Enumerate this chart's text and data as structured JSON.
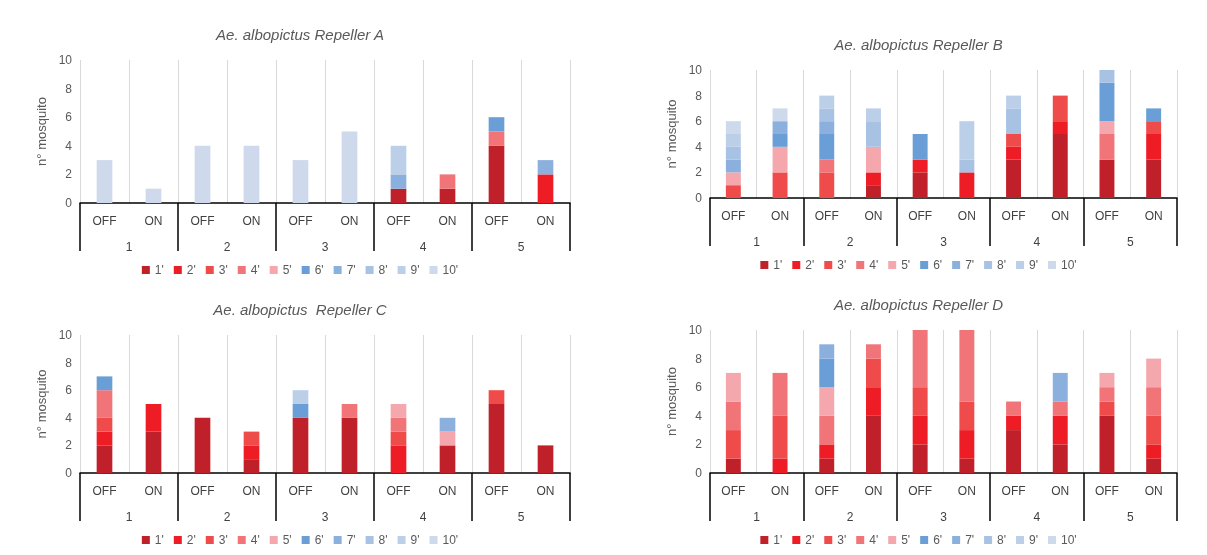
{
  "chart_data": [
    {
      "type": "bar",
      "stacked": true,
      "title": "Ae. albopictus Repeller A",
      "ylabel": "n° mosquito",
      "categories": [
        "OFF",
        "ON",
        "OFF",
        "ON",
        "OFF",
        "ON",
        "OFF",
        "ON",
        "OFF",
        "ON"
      ],
      "annotations": [
        "1",
        "2",
        "3",
        "4",
        "5"
      ],
      "ylim": [
        0,
        10
      ],
      "yticks": [
        0,
        2,
        4,
        6,
        8,
        10
      ],
      "grid": "x",
      "legend": "bottom",
      "series": [
        {
          "name": "1'",
          "color": "#c0202a",
          "values": [
            null,
            null,
            null,
            null,
            null,
            null,
            1,
            1,
            4,
            null
          ]
        },
        {
          "name": "2'",
          "color": "#ee1c25",
          "values": [
            null,
            null,
            null,
            null,
            null,
            null,
            null,
            null,
            null,
            2
          ]
        },
        {
          "name": "3'",
          "color": "#ef4b4b",
          "values": [
            null,
            null,
            null,
            null,
            null,
            null,
            null,
            null,
            null,
            null
          ]
        },
        {
          "name": "4'",
          "color": "#f07478",
          "values": [
            null,
            null,
            null,
            null,
            null,
            null,
            null,
            1,
            1,
            null
          ]
        },
        {
          "name": "5'",
          "color": "#f4a8ad",
          "values": [
            null,
            null,
            null,
            null,
            null,
            null,
            null,
            null,
            null,
            null
          ]
        },
        {
          "name": "6'",
          "color": "#6a9ed6",
          "values": [
            null,
            null,
            null,
            null,
            null,
            null,
            null,
            null,
            1,
            null
          ]
        },
        {
          "name": "7'",
          "color": "#8bb0de",
          "values": [
            null,
            null,
            null,
            null,
            null,
            null,
            1,
            null,
            null,
            1
          ]
        },
        {
          "name": "8'",
          "color": "#a8c2e4",
          "values": [
            null,
            null,
            null,
            null,
            null,
            null,
            null,
            null,
            null,
            null
          ]
        },
        {
          "name": "9'",
          "color": "#bccfe9",
          "values": [
            null,
            null,
            null,
            null,
            null,
            null,
            2,
            null,
            null,
            null
          ]
        },
        {
          "name": "10'",
          "color": "#ced9eb",
          "values": [
            3,
            1,
            4,
            4,
            3,
            5,
            null,
            null,
            null,
            null
          ]
        }
      ]
    },
    {
      "type": "bar",
      "stacked": true,
      "title": "Ae. albopictus Repeller B",
      "ylabel": "n° mosquito",
      "categories": [
        "OFF",
        "ON",
        "OFF",
        "ON",
        "OFF",
        "ON",
        "OFF",
        "ON",
        "OFF",
        "ON"
      ],
      "annotations": [
        "1",
        "2",
        "3",
        "4",
        "5"
      ],
      "ylim": [
        0,
        10
      ],
      "yticks": [
        0,
        2,
        4,
        6,
        8,
        10
      ],
      "grid": "x",
      "legend": "bottom",
      "series": [
        {
          "name": "1'",
          "color": "#c0202a",
          "values": [
            null,
            null,
            null,
            1,
            2,
            null,
            3,
            5,
            3,
            3
          ]
        },
        {
          "name": "2'",
          "color": "#ee1c25",
          "values": [
            null,
            null,
            null,
            1,
            1,
            2,
            1,
            1,
            null,
            2
          ]
        },
        {
          "name": "3'",
          "color": "#ef4b4b",
          "values": [
            1,
            2,
            2,
            null,
            null,
            null,
            1,
            2,
            null,
            1
          ]
        },
        {
          "name": "4'",
          "color": "#f07478",
          "values": [
            null,
            null,
            1,
            null,
            null,
            null,
            null,
            null,
            2,
            null
          ]
        },
        {
          "name": "5'",
          "color": "#f4a8ad",
          "values": [
            1,
            2,
            null,
            2,
            null,
            null,
            null,
            null,
            1,
            null
          ]
        },
        {
          "name": "6'",
          "color": "#6a9ed6",
          "values": [
            null,
            1,
            2,
            null,
            2,
            null,
            null,
            null,
            3,
            1
          ]
        },
        {
          "name": "7'",
          "color": "#8bb0de",
          "values": [
            1,
            1,
            1,
            null,
            null,
            null,
            null,
            null,
            null,
            null
          ]
        },
        {
          "name": "8'",
          "color": "#a8c2e4",
          "values": [
            1,
            null,
            1,
            2,
            null,
            1,
            2,
            null,
            1,
            null
          ]
        },
        {
          "name": "9'",
          "color": "#bccfe9",
          "values": [
            1,
            null,
            1,
            1,
            null,
            3,
            1,
            null,
            null,
            null
          ]
        },
        {
          "name": "10'",
          "color": "#ced9eb",
          "values": [
            1,
            1,
            null,
            null,
            null,
            null,
            null,
            null,
            null,
            null
          ]
        }
      ]
    },
    {
      "type": "bar",
      "stacked": true,
      "title": "Ae. albopictus  Repeller C",
      "ylabel": "n° mosquito",
      "categories": [
        "OFF",
        "ON",
        "OFF",
        "ON",
        "OFF",
        "ON",
        "OFF",
        "ON",
        "OFF",
        "ON"
      ],
      "annotations": [
        "1",
        "2",
        "3",
        "4",
        "5"
      ],
      "ylim": [
        0,
        10
      ],
      "yticks": [
        0,
        2,
        4,
        6,
        8,
        10
      ],
      "grid": "x",
      "legend": "bottom",
      "series": [
        {
          "name": "1'",
          "color": "#c0202a",
          "values": [
            2,
            3,
            4,
            1,
            4,
            4,
            null,
            2,
            5,
            2
          ]
        },
        {
          "name": "2'",
          "color": "#ee1c25",
          "values": [
            1,
            2,
            null,
            1,
            null,
            null,
            2,
            null,
            null,
            null
          ]
        },
        {
          "name": "3'",
          "color": "#ef4b4b",
          "values": [
            1,
            null,
            null,
            1,
            null,
            null,
            1,
            null,
            1,
            null
          ]
        },
        {
          "name": "4'",
          "color": "#f07478",
          "values": [
            2,
            null,
            null,
            null,
            null,
            1,
            1,
            null,
            null,
            null
          ]
        },
        {
          "name": "5'",
          "color": "#f4a8ad",
          "values": [
            null,
            null,
            null,
            null,
            null,
            null,
            1,
            1,
            null,
            null
          ]
        },
        {
          "name": "6'",
          "color": "#6a9ed6",
          "values": [
            1,
            null,
            null,
            null,
            1,
            null,
            null,
            null,
            null,
            null
          ]
        },
        {
          "name": "7'",
          "color": "#8bb0de",
          "values": [
            null,
            null,
            null,
            null,
            null,
            null,
            null,
            1,
            null,
            null
          ]
        },
        {
          "name": "8'",
          "color": "#a8c2e4",
          "values": [
            null,
            null,
            null,
            null,
            null,
            null,
            null,
            null,
            null,
            null
          ]
        },
        {
          "name": "9'",
          "color": "#bccfe9",
          "values": [
            null,
            null,
            null,
            null,
            1,
            null,
            null,
            null,
            null,
            null
          ]
        },
        {
          "name": "10'",
          "color": "#ced9eb",
          "values": [
            null,
            null,
            null,
            null,
            null,
            null,
            null,
            null,
            null,
            null
          ]
        }
      ]
    },
    {
      "type": "bar",
      "stacked": true,
      "title": "Ae. albopictus Repeller D",
      "ylabel": "n° mosquito",
      "categories": [
        "OFF",
        "ON",
        "OFF",
        "ON",
        "OFF",
        "ON",
        "OFF",
        "ON",
        "OFF",
        "ON"
      ],
      "annotations": [
        "1",
        "2",
        "3",
        "4",
        "5"
      ],
      "ylim": [
        0,
        10
      ],
      "yticks": [
        0,
        2,
        4,
        6,
        8,
        10
      ],
      "grid": "x",
      "legend": "bottom",
      "series": [
        {
          "name": "1'",
          "color": "#c0202a",
          "values": [
            1,
            null,
            1,
            4,
            2,
            1,
            3,
            2,
            4,
            1
          ]
        },
        {
          "name": "2'",
          "color": "#ee1c25",
          "values": [
            null,
            1,
            1,
            2,
            2,
            2,
            1,
            2,
            null,
            1
          ]
        },
        {
          "name": "3'",
          "color": "#ef4b4b",
          "values": [
            2,
            3,
            null,
            2,
            2,
            2,
            null,
            null,
            1,
            2
          ]
        },
        {
          "name": "4'",
          "color": "#f07478",
          "values": [
            2,
            3,
            2,
            1,
            4,
            5,
            1,
            1,
            1,
            2
          ]
        },
        {
          "name": "5'",
          "color": "#f4a8ad",
          "values": [
            2,
            null,
            2,
            null,
            null,
            null,
            null,
            null,
            1,
            2
          ]
        },
        {
          "name": "6'",
          "color": "#6a9ed6",
          "values": [
            null,
            null,
            2,
            null,
            null,
            null,
            null,
            null,
            null,
            null
          ]
        },
        {
          "name": "7'",
          "color": "#8bb0de",
          "values": [
            null,
            null,
            1,
            null,
            null,
            null,
            null,
            2,
            null,
            null
          ]
        },
        {
          "name": "8'",
          "color": "#a8c2e4",
          "values": [
            null,
            null,
            null,
            null,
            null,
            null,
            null,
            null,
            null,
            null
          ]
        },
        {
          "name": "9'",
          "color": "#bccfe9",
          "values": [
            null,
            null,
            null,
            null,
            null,
            null,
            null,
            null,
            null,
            null
          ]
        },
        {
          "name": "10'",
          "color": "#ced9eb",
          "values": [
            null,
            null,
            null,
            null,
            null,
            null,
            null,
            null,
            null,
            null
          ]
        }
      ]
    }
  ]
}
